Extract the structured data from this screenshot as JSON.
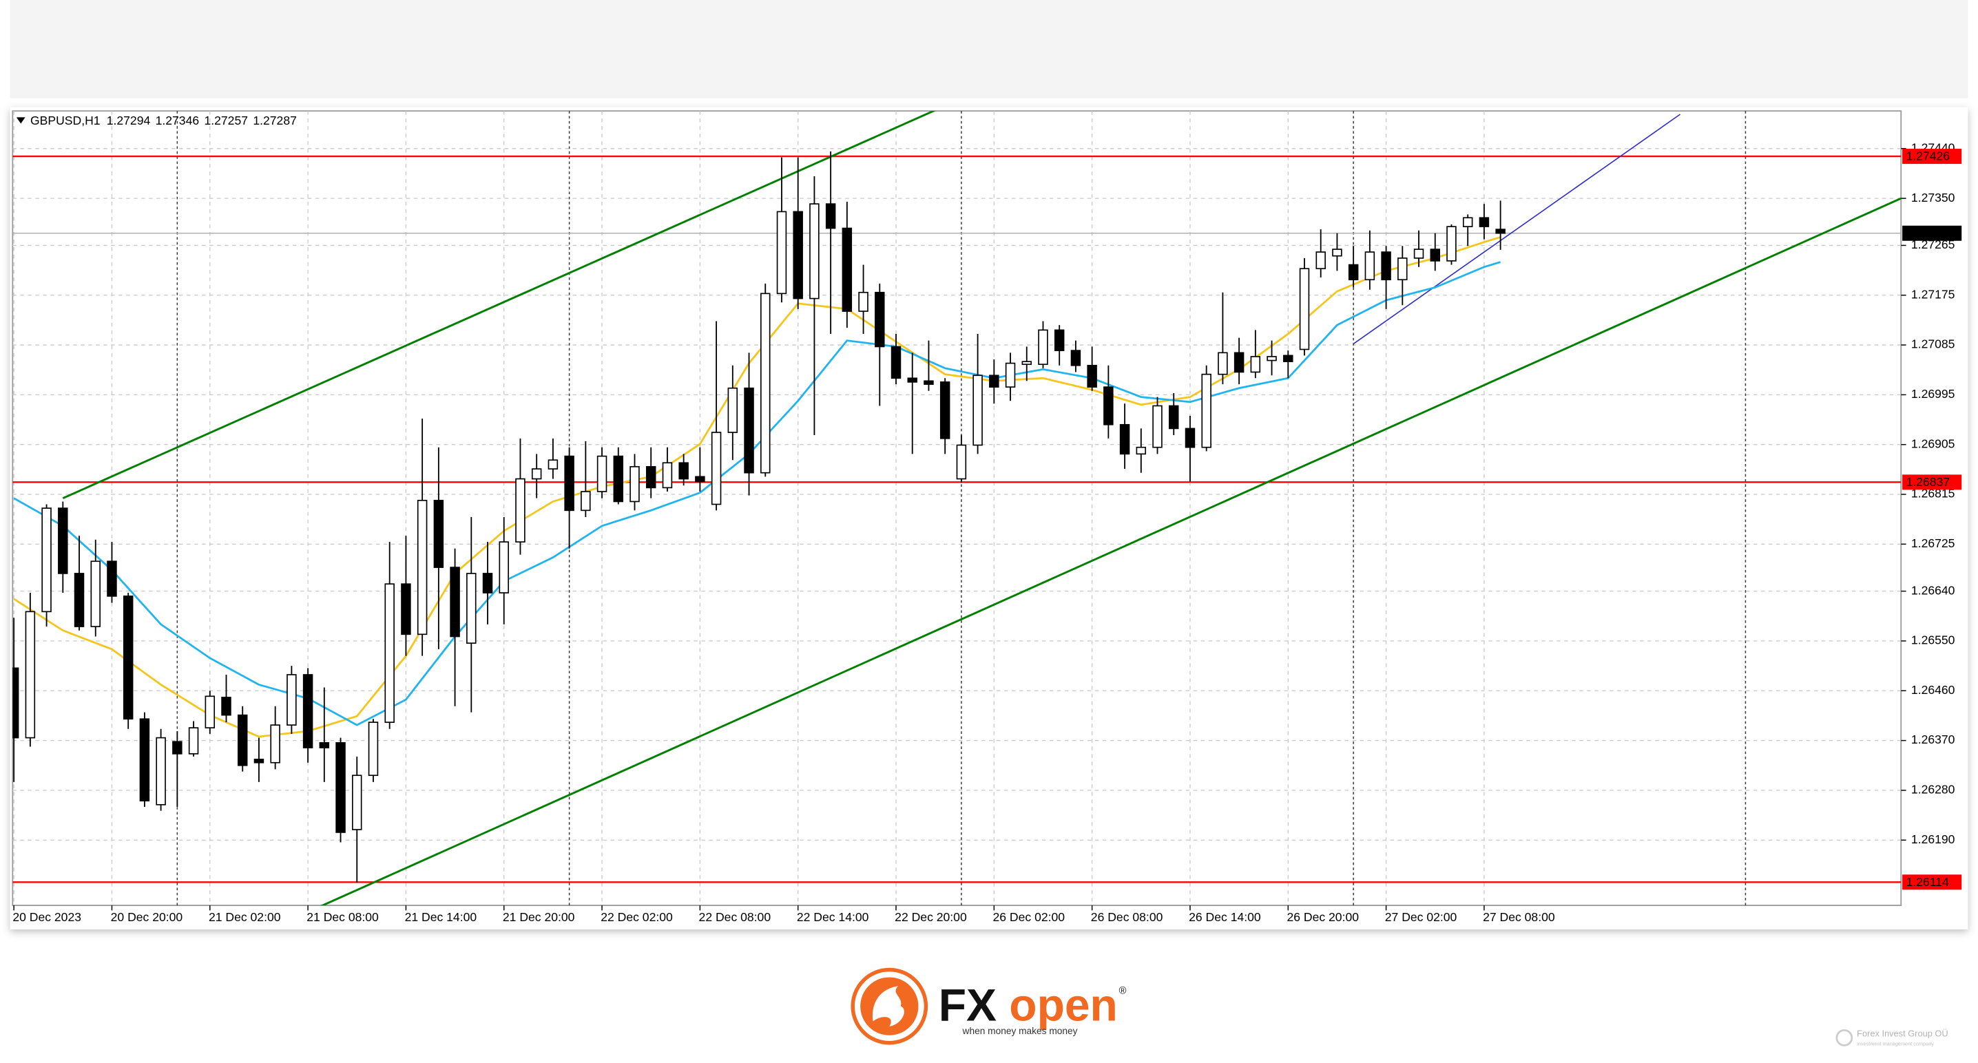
{
  "chart_data": {
    "type": "candlestick",
    "symbol": "GBPUSD,H1",
    "ylim": [
      1.26072,
      1.27508
    ],
    "yticks": [
      {
        "value": 1.2744,
        "label": "1.27440"
      },
      {
        "value": 1.2735,
        "label": "1.27350"
      },
      1.27265,
      1.27175,
      1.27085,
      1.26995,
      1.26905,
      1.26815,
      1.26725,
      {
        "value": 1.2664,
        "label": "1.26640"
      },
      {
        "value": 1.2655,
        "label": "1.26550"
      },
      {
        "value": 1.2646,
        "label": "1.26460"
      },
      {
        "value": 1.2637,
        "label": "1.26370"
      },
      {
        "value": 1.2628,
        "label": "1.26280"
      },
      {
        "value": 1.2619,
        "label": "1.26190"
      }
    ],
    "grid": true,
    "up_color": "#ffffff",
    "down_color": "#000000",
    "wick_color": "#000000",
    "categories": [
      "20 Dec 2023",
      null,
      null,
      null,
      null,
      null,
      "20 Dec 20:00",
      null,
      null,
      null,
      null,
      null,
      "21 Dec 02:00",
      null,
      null,
      null,
      null,
      null,
      "21 Dec 08:00",
      null,
      null,
      null,
      null,
      null,
      "21 Dec 14:00",
      null,
      null,
      null,
      null,
      null,
      "21 Dec 20:00",
      null,
      null,
      null,
      null,
      null,
      "22 Dec 02:00",
      null,
      null,
      null,
      null,
      null,
      "22 Dec 08:00",
      null,
      null,
      null,
      null,
      null,
      "22 Dec 14:00",
      null,
      null,
      null,
      null,
      null,
      "22 Dec 20:00",
      null,
      null,
      null,
      null,
      null,
      "26 Dec 02:00",
      null,
      null,
      null,
      null,
      null,
      "26 Dec 08:00",
      null,
      null,
      null,
      null,
      null,
      "26 Dec 14:00",
      null,
      null,
      null,
      null,
      null,
      "26 Dec 20:00",
      null,
      null,
      null,
      null,
      null,
      "27 Dec 02:00",
      null,
      null,
      null,
      null,
      null,
      "27 Dec 08:00",
      null
    ],
    "open": [
      1.26501,
      1.26375,
      1.26603,
      1.2679,
      1.26672,
      1.26576,
      1.26694,
      1.26631,
      1.26409,
      1.26254,
      1.26368,
      1.26346,
      1.26393,
      1.26448,
      1.26416,
      1.26336,
      1.2633,
      1.26398,
      1.26489,
      1.26366,
      1.26366,
      1.26209,
      1.26307,
      1.26403,
      1.26653,
      1.26562,
      1.26804,
      1.26683,
      1.26546,
      1.26672,
      1.26637,
      1.26729,
      1.26843,
      1.26861,
      1.26884,
      1.26786,
      1.2682,
      1.26884,
      1.26802,
      1.26865,
      1.26827,
      1.26872,
      1.26847,
      1.26797,
      1.26927,
      1.27007,
      1.26854,
      1.27178,
      1.27326,
      1.27169,
      1.2734,
      1.27296,
      1.27146,
      1.2718,
      1.27082,
      1.27025,
      1.2702,
      1.27018,
      1.26843,
      1.26904,
      1.2703,
      1.27009,
      1.2705,
      1.2705,
      1.27112,
      1.27075,
      1.27048,
      1.27009,
      1.26941,
      1.26888,
      1.269,
      1.26975,
      1.26934,
      1.269,
      1.27032,
      1.27071,
      1.27036,
      1.27057,
      1.27066,
      1.27077,
      1.27223,
      1.27246,
      1.2723,
      1.27203,
      1.27253,
      1.27203,
      1.27242,
      1.27258,
      1.27237,
      1.27299,
      1.27315,
      1.27294
    ],
    "high": [
      1.26592,
      1.26637,
      1.26797,
      1.26802,
      1.2674,
      1.26733,
      1.26729,
      1.26637,
      1.26421,
      1.26391,
      1.26387,
      1.26405,
      1.2646,
      1.26489,
      1.26432,
      1.26375,
      1.26432,
      1.26505,
      1.26501,
      1.26466,
      1.26375,
      1.26341,
      1.26409,
      1.26729,
      1.2674,
      1.26952,
      1.269,
      1.26717,
      1.26774,
      1.26729,
      1.26774,
      1.26916,
      1.26888,
      1.26916,
      1.269,
      1.26911,
      1.269,
      1.269,
      1.26888,
      1.269,
      1.269,
      1.26888,
      1.269,
      1.27128,
      1.27048,
      1.27071,
      1.27196,
      1.27424,
      1.27424,
      1.2739,
      1.27435,
      1.27344,
      1.2723,
      1.27196,
      1.27105,
      1.27071,
      1.27093,
      1.27025,
      1.26922,
      1.27105,
      1.27059,
      1.27071,
      1.27082,
      1.27128,
      1.27121,
      1.27093,
      1.27082,
      1.27048,
      1.26979,
      1.26934,
      1.26991,
      1.26998,
      1.26957,
      1.27048,
      1.2718,
      1.27098,
      1.27112,
      1.27093,
      1.27075,
      1.27242,
      1.27294,
      1.27287,
      1.27264,
      1.27292,
      1.27264,
      1.27264,
      1.27292,
      1.27287,
      1.27303,
      1.27321,
      1.2734,
      1.27346
    ],
    "low": [
      1.26295,
      1.26359,
      1.26576,
      1.26637,
      1.26569,
      1.26558,
      1.26619,
      1.26391,
      1.2625,
      1.26243,
      1.2625,
      1.26341,
      1.26382,
      1.26403,
      1.26314,
      1.26295,
      1.26318,
      1.26382,
      1.2633,
      1.26295,
      1.26186,
      1.26113,
      1.26295,
      1.26391,
      1.26523,
      1.26523,
      1.26535,
      1.26432,
      1.26421,
      1.2658,
      1.2658,
      1.26706,
      1.26808,
      1.26843,
      1.26717,
      1.26774,
      1.26808,
      1.26797,
      1.26786,
      1.26808,
      1.2682,
      1.26831,
      1.2682,
      1.26786,
      1.26877,
      1.26813,
      1.26847,
      1.27162,
      1.2715,
      1.26922,
      1.27105,
      1.27116,
      1.27105,
      1.26975,
      1.27014,
      1.26888,
      1.27002,
      1.26888,
      1.26836,
      1.26888,
      1.26979,
      1.26984,
      1.2702,
      1.27043,
      1.27048,
      1.27036,
      1.27002,
      1.26916,
      1.26861,
      1.26854,
      1.26888,
      1.26922,
      1.26838,
      1.26893,
      1.27014,
      1.27014,
      1.27025,
      1.2703,
      1.27025,
      1.27066,
      1.27207,
      1.27219,
      1.27189,
      1.27185,
      1.2715,
      1.27157,
      1.27226,
      1.27219,
      1.2723,
      1.27264,
      1.27276,
      1.27257
    ],
    "close": [
      1.26375,
      1.26603,
      1.2679,
      1.26672,
      1.26576,
      1.26694,
      1.26631,
      1.26409,
      1.26261,
      1.26375,
      1.26346,
      1.26393,
      1.2645,
      1.26416,
      1.26325,
      1.2633,
      1.26398,
      1.26489,
      1.26357,
      1.26357,
      1.26204,
      1.26307,
      1.26403,
      1.26653,
      1.26562,
      1.26804,
      1.26683,
      1.26558,
      1.26672,
      1.26637,
      1.26729,
      1.26843,
      1.26861,
      1.26877,
      1.26786,
      1.2682,
      1.26884,
      1.26802,
      1.26865,
      1.26827,
      1.26872,
      1.26843,
      1.26838,
      1.26927,
      1.27007,
      1.26854,
      1.27178,
      1.27326,
      1.27169,
      1.2734,
      1.27296,
      1.27146,
      1.2718,
      1.27082,
      1.27025,
      1.27018,
      1.27014,
      1.26916,
      1.26904,
      1.2703,
      1.27009,
      1.27052,
      1.27055,
      1.27112,
      1.27075,
      1.27048,
      1.27009,
      1.26941,
      1.26888,
      1.269,
      1.26975,
      1.26934,
      1.269,
      1.27032,
      1.27071,
      1.27036,
      1.27064,
      1.27064,
      1.27055,
      1.27223,
      1.27253,
      1.27258,
      1.27203,
      1.27253,
      1.27203,
      1.27242,
      1.27258,
      1.27237,
      1.27299,
      1.27315,
      1.27299,
      1.27287
    ],
    "lines": [
      {
        "color": "#f5c518",
        "x": [
          0,
          3,
          6,
          9,
          12,
          15,
          18,
          21,
          24,
          27,
          30,
          33,
          36,
          39,
          42,
          45,
          48,
          51,
          54,
          57,
          60,
          63,
          66,
          69,
          72,
          75,
          78,
          81,
          84,
          87,
          90,
          91
        ],
        "values": [
          1.26626,
          1.26569,
          1.26535,
          1.26471,
          1.26416,
          1.26377,
          1.26387,
          1.26414,
          1.26523,
          1.26672,
          1.26749,
          1.26802,
          1.26829,
          1.26847,
          1.26906,
          1.27052,
          1.2716,
          1.2715,
          1.27091,
          1.27032,
          1.2702,
          1.27025,
          1.27004,
          1.26977,
          1.26991,
          1.27041,
          1.27105,
          1.27182,
          1.27219,
          1.27242,
          1.27271,
          1.2728
        ]
      },
      {
        "color": "#1eb4f0",
        "x": [
          0,
          3,
          6,
          9,
          12,
          15,
          18,
          21,
          24,
          27,
          30,
          33,
          36,
          39,
          42,
          45,
          48,
          51,
          54,
          57,
          60,
          63,
          66,
          69,
          72,
          75,
          78,
          81,
          84,
          87,
          90,
          91
        ],
        "values": [
          1.26808,
          1.26758,
          1.26678,
          1.2658,
          1.26519,
          1.26471,
          1.26446,
          1.26398,
          1.26444,
          1.26558,
          1.26658,
          1.26701,
          1.26758,
          1.26786,
          1.26818,
          1.26888,
          1.26984,
          1.27093,
          1.27082,
          1.27043,
          1.27025,
          1.27041,
          1.27025,
          1.26991,
          1.26982,
          1.27007,
          1.27025,
          1.27121,
          1.27166,
          1.27189,
          1.27226,
          1.27235
        ]
      }
    ],
    "trendlines": [
      {
        "color": "#008000",
        "x": [
          3,
          55
        ],
        "values": [
          1.26808,
          1.27491
        ],
        "extend": "right"
      },
      {
        "color": "#008000",
        "x": [
          22,
          110
        ],
        "values": [
          1.26113,
          1.27277
        ],
        "extend": "both"
      },
      {
        "color": "#3030c8",
        "x": [
          82,
          102
        ],
        "values": [
          1.27087,
          1.27502
        ],
        "extend": "none"
      }
    ],
    "levels": [
      {
        "value": 1.27426,
        "color": "#ff0000"
      },
      {
        "value": 1.26837,
        "color": "#ff0000"
      },
      {
        "value": 1.26114,
        "color": "#ff0000"
      }
    ],
    "separators": [
      10,
      34,
      58,
      82,
      106
    ]
  },
  "logo": {
    "brand_a": "FX",
    "brand_b": "open",
    "mark": "®",
    "tagline": "when money makes money"
  },
  "watermark": {
    "name": "Forex Invest Group OÜ",
    "sub": "investment management company"
  }
}
